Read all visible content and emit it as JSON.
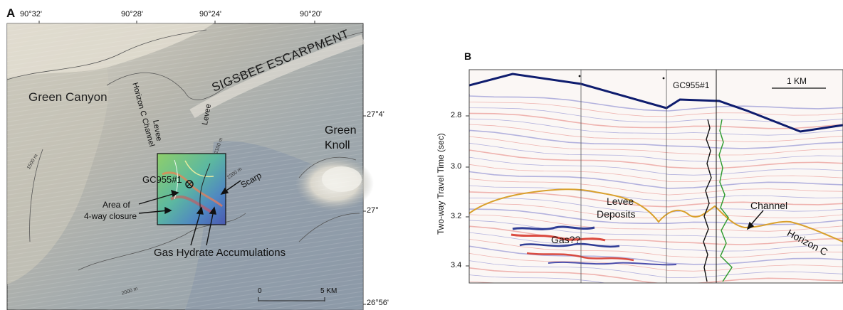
{
  "panelA": {
    "letter": "A",
    "top_ticks": [
      "90°32'",
      "90°28'",
      "90°24'",
      "90°20'"
    ],
    "right_ticks": [
      "27°4'",
      "27°",
      "26°56'"
    ],
    "labels": {
      "green_canyon": "Green Canyon",
      "sigsbee": "SIGSBEE ESCARPMENT",
      "green_knoll_1": "Green",
      "green_knoll_2": "Knoll",
      "channel": "Horizon C Channel",
      "levee_left": "Levee",
      "levee_right": "Levee",
      "well": "GC955#1",
      "scarp": "Scarp",
      "closure_1": "Area of",
      "closure_2": "4-way closure",
      "hydrates": "Gas Hydrate Accumulations",
      "contour_1500": "1500 m",
      "contour_2000": "2000 m",
      "contour_2100": "2100 m",
      "contour_2200": "2200 m",
      "scale_0": "0",
      "scale_5": "5 KM"
    },
    "colors": {
      "bathymetry_light": "#d7d2c6",
      "bathymetry_mid": "#a6aeb0",
      "bathymetry_deep": "#8c9aa6",
      "amplitude_green": "#77c05a",
      "amplitude_blue": "#5468b4"
    }
  },
  "panelB": {
    "letter": "B",
    "ylabel": "Two-way Travel Time (sec)",
    "yticks": [
      "2.8",
      "3.0",
      "3.2",
      "3.4"
    ],
    "labels": {
      "well": "GC955#1",
      "scale": "1 KM",
      "levee_1": "Levee",
      "levee_2": "Deposits",
      "channel": "Channel",
      "gas": "Gas??",
      "horizon": "Horizon C"
    },
    "colors": {
      "seafloor": "#0e1c6e",
      "horizon_c": "#d9a02c",
      "log_black": "#111111",
      "log_green": "#2b9a2b",
      "red_reflector": "#e0605a",
      "blue_reflector": "#5a5ec4"
    }
  }
}
